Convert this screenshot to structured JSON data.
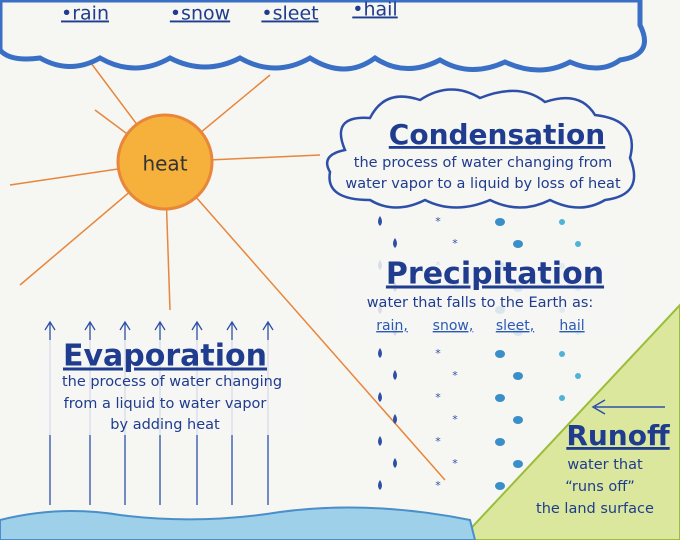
{
  "top_cloud": {
    "items": [
      "•rain",
      "•snow",
      "•sleet",
      "•hail"
    ]
  },
  "sun": {
    "label": "heat"
  },
  "condensation": {
    "title": "Condensation",
    "lines": [
      "the process of water changing from",
      "water vapor to a liquid by loss of heat"
    ]
  },
  "precipitation": {
    "title": "Precipitation",
    "description": "water that falls to the Earth as:",
    "types": [
      "rain,",
      "snow,",
      "sleet,",
      "hail"
    ]
  },
  "evaporation": {
    "title": "Evaporation",
    "lines": [
      "the process of water changing",
      "from a liquid to water vapor",
      "by adding heat"
    ]
  },
  "runoff": {
    "title": "Runoff",
    "lines": [
      "water that",
      "“runs off”",
      "the land surface"
    ]
  }
}
